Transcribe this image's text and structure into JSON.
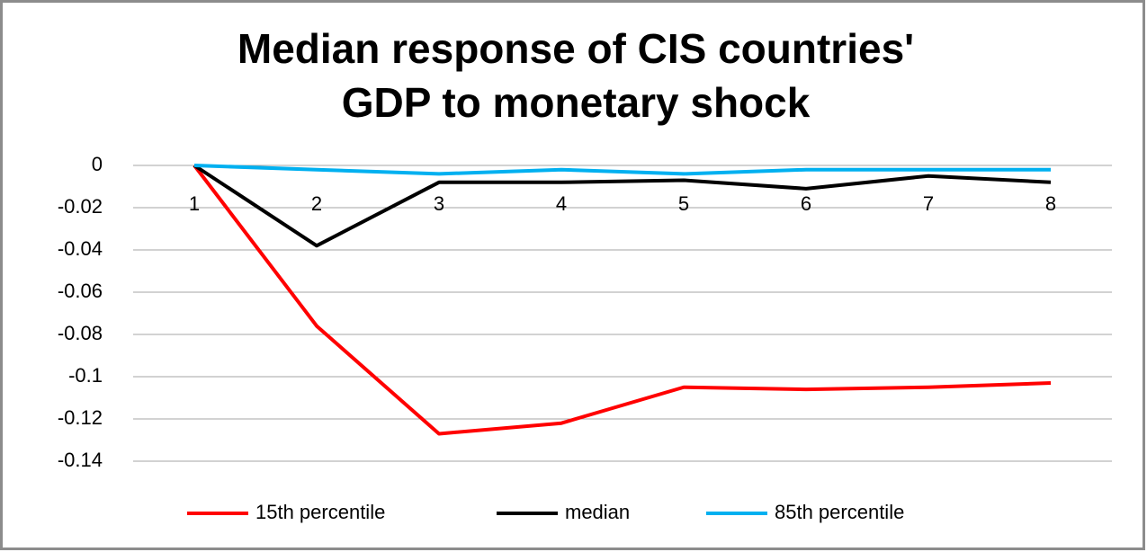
{
  "chart_data": {
    "type": "line",
    "title": [
      "Median response of CIS countries'",
      "GDP to monetary shock"
    ],
    "categories": [
      "1",
      "2",
      "3",
      "4",
      "5",
      "6",
      "7",
      "8"
    ],
    "series": [
      {
        "name": "15th percentile",
        "color": "#ff0000",
        "values": [
          0,
          -0.076,
          -0.127,
          -0.122,
          -0.105,
          -0.106,
          -0.105,
          -0.103
        ]
      },
      {
        "name": "median",
        "color": "#000000",
        "values": [
          0,
          -0.038,
          -0.008,
          -0.008,
          -0.007,
          -0.011,
          -0.005,
          -0.008
        ]
      },
      {
        "name": "85th percentile",
        "color": "#00b0f0",
        "values": [
          0,
          -0.002,
          -0.004,
          -0.002,
          -0.004,
          -0.002,
          -0.002,
          -0.002
        ]
      }
    ],
    "ylim": [
      -0.14,
      0
    ],
    "yticks": [
      0,
      -0.02,
      -0.04,
      -0.06,
      -0.08,
      -0.1,
      -0.12,
      -0.14
    ],
    "grid": true,
    "legend": "bottom"
  }
}
